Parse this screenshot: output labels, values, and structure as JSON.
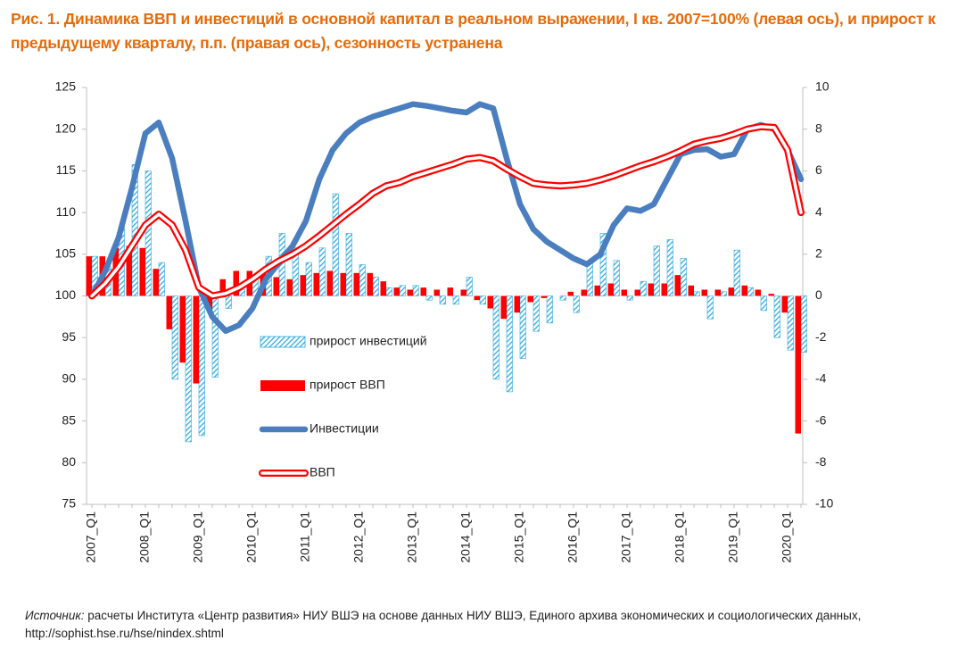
{
  "chart_data": {
    "type": "combo",
    "title": "Рис. 1. Динамика ВВП и инвестиций в основной капитал в реальном выражении, I кв. 2007=100% (левая ось), и прирост к предыдущему кварталу, п.п. (правая ось), сезонность устранена",
    "source_label": "Источник:",
    "source_text": "расчеты Института «Центр развития» НИУ ВШЭ на основе данных НИУ ВШЭ, Единого архива экономических и социологических данных, http://sophist.hse.ru/hse/nindex.shtml",
    "categories": [
      "2007_Q1",
      null,
      null,
      null,
      "2008_Q1",
      null,
      null,
      null,
      "2009_Q1",
      null,
      null,
      null,
      "2010_Q1",
      null,
      null,
      null,
      "2011_Q1",
      null,
      null,
      null,
      "2012_Q1",
      null,
      null,
      null,
      "2013_Q1",
      null,
      null,
      null,
      "2014_Q1",
      null,
      null,
      null,
      "2015_Q1",
      null,
      null,
      null,
      "2016_Q1",
      null,
      null,
      null,
      "2017_Q1",
      null,
      null,
      null,
      "2018_Q1",
      null,
      null,
      null,
      "2019_Q1",
      null,
      null,
      null,
      "2020_Q1",
      null
    ],
    "ylim": [
      75,
      125
    ],
    "yticks": [
      75,
      80,
      85,
      90,
      95,
      100,
      105,
      110,
      115,
      120,
      125
    ],
    "y2lim": [
      -10,
      10
    ],
    "y2ticks": [
      -10,
      -8,
      -6,
      -4,
      -2,
      0,
      2,
      4,
      6,
      8,
      10
    ],
    "series": [
      {
        "name": "прирост инвестиций",
        "type": "bar",
        "axis": "y2",
        "color": "#2aa9e0",
        "hatch": true,
        "values": [
          1.9,
          1.4,
          3.3,
          6.3,
          6.0,
          1.6,
          -4.0,
          -7.0,
          -6.7,
          -3.9,
          -0.6,
          0.3,
          1.0,
          1.9,
          3.0,
          2.3,
          1.6,
          2.3,
          4.9,
          3.0,
          1.5,
          0.9,
          0.4,
          0.5,
          0.5,
          -0.2,
          -0.4,
          -0.4,
          0.9,
          -0.4,
          -4.0,
          -4.6,
          -3.0,
          -1.7,
          -1.3,
          -0.2,
          -0.8,
          1.6,
          3.0,
          1.7,
          -0.2,
          0.7,
          2.4,
          2.7,
          1.8,
          0.2,
          -1.1,
          0.2,
          2.2,
          0.4,
          -0.7,
          -2.0,
          -2.6,
          -2.7
        ]
      },
      {
        "name": "прирост ВВП",
        "type": "bar",
        "axis": "y2",
        "color": "#ff0000",
        "values": [
          1.9,
          1.9,
          2.3,
          2.4,
          2.3,
          1.3,
          -1.6,
          -3.2,
          -4.2,
          -0.7,
          0.8,
          1.2,
          1.2,
          1.3,
          0.9,
          0.8,
          1.0,
          1.1,
          1.2,
          1.1,
          1.1,
          1.1,
          0.7,
          0.4,
          0.3,
          0.4,
          0.3,
          0.4,
          0.3,
          -0.2,
          -0.6,
          -1.1,
          -0.8,
          -0.3,
          -0.1,
          0.0,
          0.2,
          0.3,
          0.5,
          0.6,
          0.3,
          0.3,
          0.6,
          0.6,
          1.0,
          0.5,
          0.3,
          0.3,
          0.4,
          0.5,
          0.3,
          0.1,
          -0.8,
          -6.6
        ]
      },
      {
        "name": "Инвестиции",
        "type": "line",
        "color": "#4a7ebf",
        "values": [
          100,
          103,
          107,
          113,
          119.5,
          120.8,
          116.5,
          109,
          101,
          97.5,
          95.8,
          96.5,
          98.5,
          102,
          104,
          106,
          109,
          114,
          117.5,
          119.5,
          120.8,
          121.5,
          122,
          122.5,
          123,
          122.8,
          122.5,
          122.2,
          122,
          123,
          122.5,
          116.5,
          111,
          108,
          106.5,
          105.5,
          104.5,
          103.8,
          105,
          108.5,
          110.5,
          110.2,
          111,
          114,
          117,
          117.5,
          117.6,
          116.7,
          117,
          120,
          120.5,
          120,
          117.5,
          114
        ]
      },
      {
        "name": "ВВП",
        "type": "line",
        "color": "#ff0000",
        "double": true,
        "values": [
          100,
          101.5,
          103.5,
          106,
          108.5,
          109.8,
          108.5,
          105.5,
          101,
          100,
          100.3,
          101,
          102,
          103.2,
          104.2,
          105,
          106,
          107.2,
          108.5,
          109.8,
          111,
          112.3,
          113.2,
          113.6,
          114.3,
          114.8,
          115.3,
          115.8,
          116.4,
          116.6,
          116.2,
          115.2,
          114.3,
          113.5,
          113.3,
          113.2,
          113.3,
          113.5,
          113.9,
          114.4,
          115,
          115.6,
          116.1,
          116.7,
          117.4,
          118.2,
          118.6,
          118.9,
          119.4,
          120,
          120.3,
          120.2,
          117.5,
          110
        ]
      }
    ]
  }
}
